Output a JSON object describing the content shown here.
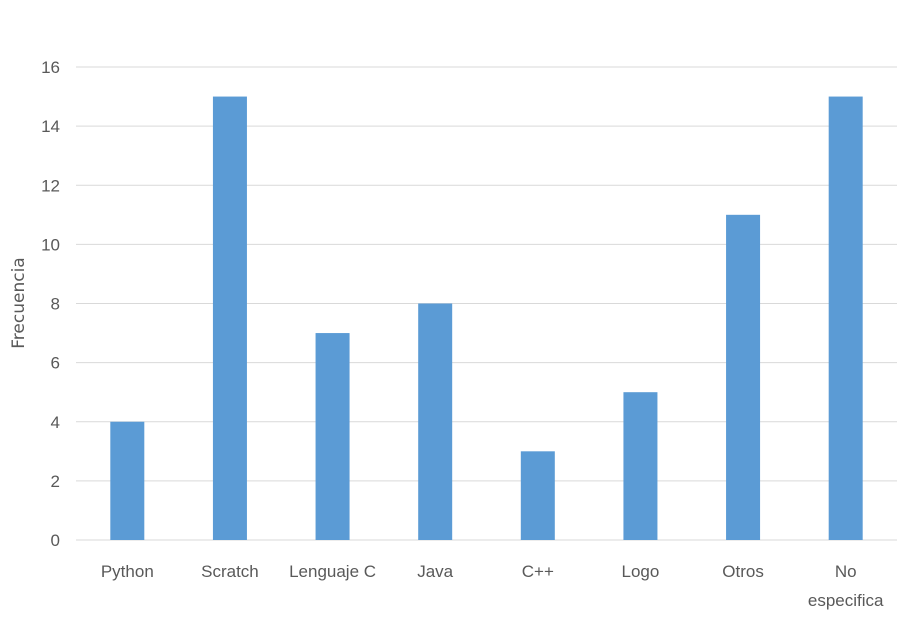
{
  "chart_data": {
    "type": "bar",
    "categories": [
      "Python",
      "Scratch",
      "Lenguaje C",
      "Java",
      "C++",
      "Logo",
      "Otros",
      "No especifica"
    ],
    "category_lines": [
      [
        "Python"
      ],
      [
        "Scratch"
      ],
      [
        "Lenguaje C"
      ],
      [
        "Java"
      ],
      [
        "C++"
      ],
      [
        "Logo"
      ],
      [
        "Otros"
      ],
      [
        "No",
        "especifica"
      ]
    ],
    "values": [
      4,
      15,
      7,
      8,
      3,
      5,
      11,
      15
    ],
    "ylabel": "Frecuencia",
    "xlabel": "",
    "ylim": [
      0,
      16
    ],
    "yticks": [
      0,
      2,
      4,
      6,
      8,
      10,
      12,
      14,
      16
    ],
    "grid": true,
    "legend": "none",
    "bar_color": "#5b9bd5",
    "grid_color": "#d9d9d9",
    "text_color": "#595959"
  }
}
